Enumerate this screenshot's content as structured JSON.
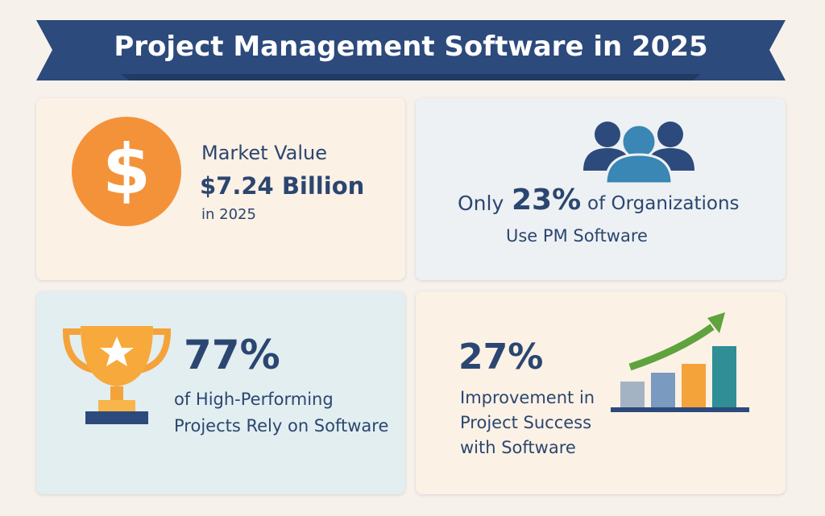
{
  "header": {
    "title": "Project Management Software in 2025"
  },
  "cards": [
    {
      "label": "Market Value",
      "value": "$7.24 Billion",
      "note": "in 2025"
    },
    {
      "prefix": "Only",
      "value": "23%",
      "suffix": "of Organizations",
      "note": "Use PM Software"
    },
    {
      "value": "77%",
      "lines": [
        "of High-Performing",
        "Projects Rely on Software"
      ]
    },
    {
      "value": "27%",
      "lines": [
        "Improvement in",
        "Project Success",
        "with Software"
      ]
    }
  ]
}
